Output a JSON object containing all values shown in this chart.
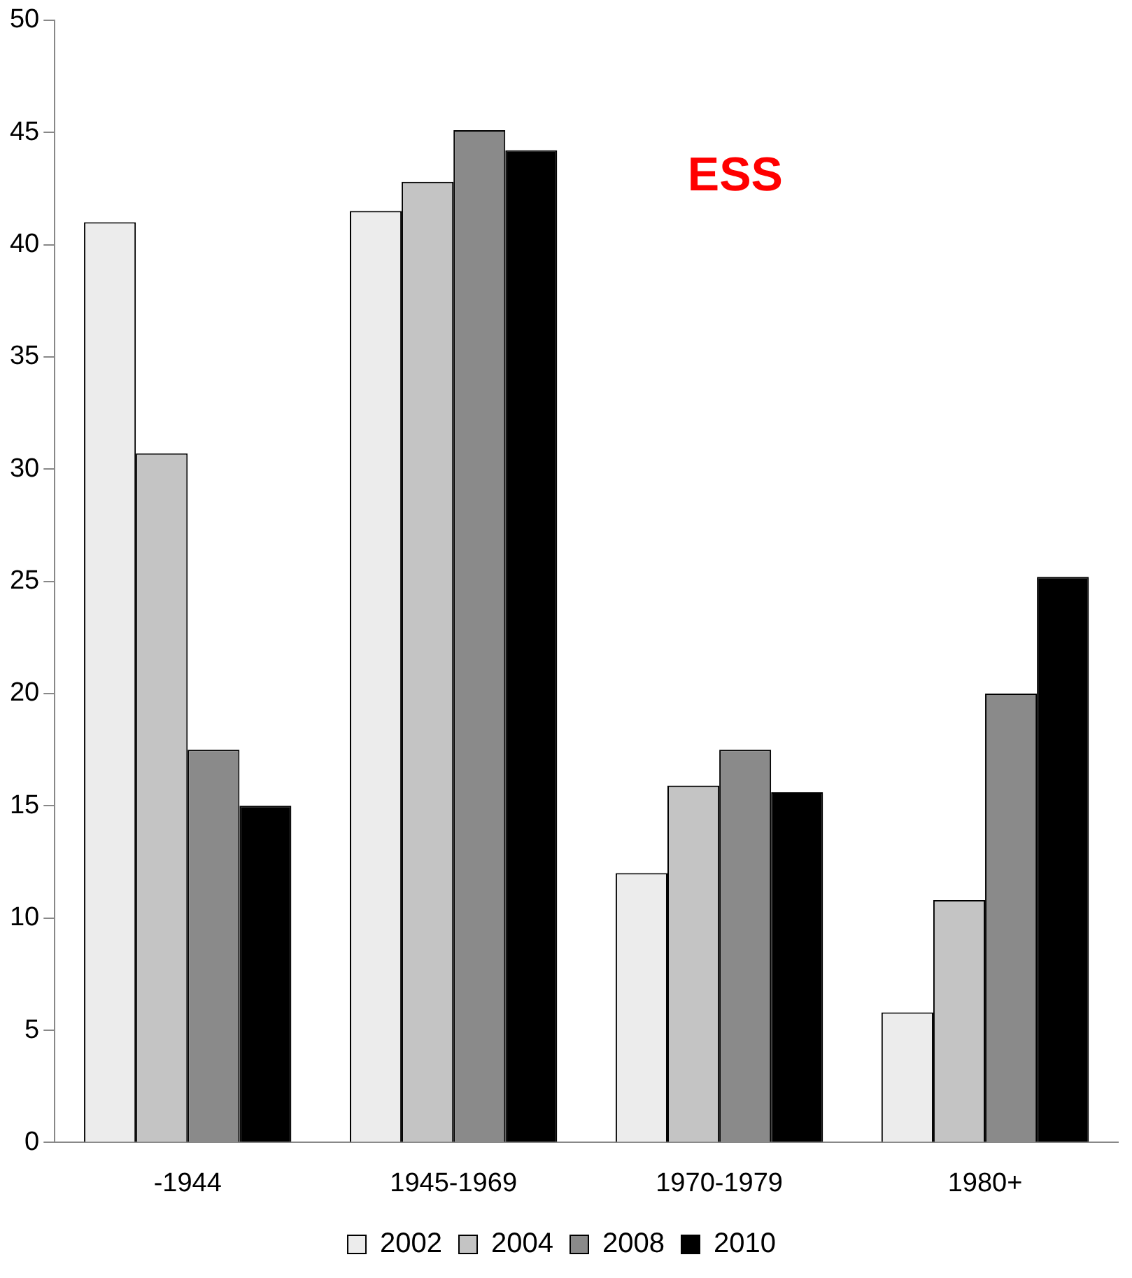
{
  "chart_data": {
    "type": "bar",
    "categories": [
      "-1944",
      "1945-1969",
      "1970-1979",
      "1980+"
    ],
    "series": [
      {
        "name": "2002",
        "color": "#ececec",
        "values": [
          41.0,
          41.5,
          12.0,
          5.8
        ]
      },
      {
        "name": "2004",
        "color": "#c4c4c4",
        "values": [
          30.7,
          42.8,
          15.9,
          10.8
        ]
      },
      {
        "name": "2008",
        "color": "#8a8a8a",
        "values": [
          17.5,
          45.1,
          17.5,
          20.0
        ]
      },
      {
        "name": "2010",
        "color": "#000000",
        "values": [
          15.0,
          44.2,
          15.6,
          25.2
        ]
      }
    ],
    "ylim": [
      0,
      50
    ],
    "yticks": [
      0,
      5,
      10,
      15,
      20,
      25,
      30,
      35,
      40,
      45,
      50
    ],
    "grid": false,
    "legend": "bottom",
    "annotations": [
      "ESS"
    ]
  }
}
